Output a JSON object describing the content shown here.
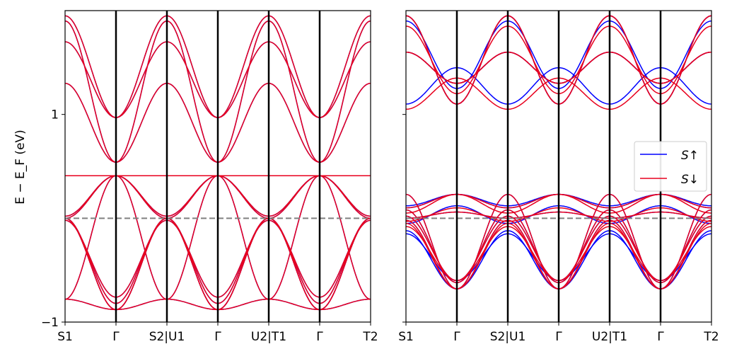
{
  "chart_data": [
    {
      "type": "line",
      "panel": "left",
      "ylabel": "E − E_F (eV)",
      "ylim": [
        -1,
        2
      ],
      "yticks": [
        1,
        -1
      ],
      "ytick_labels": [
        "1",
        "−1"
      ],
      "x_segments": [
        {
          "from": "S1",
          "to": "Γ"
        },
        {
          "from": "Γ",
          "to": "S2"
        },
        {
          "from": "U1",
          "to": "Γ"
        },
        {
          "from": "Γ",
          "to": "U2"
        },
        {
          "from": "T1",
          "to": "Γ"
        },
        {
          "from": "Γ",
          "to": "T2"
        }
      ],
      "xtick_labels": [
        "S1",
        "Γ",
        "S2|U1",
        "Γ",
        "U2|T1",
        "Γ",
        "T2"
      ],
      "fermi_level": 0,
      "series": [
        {
          "color": "#0000ff",
          "curves": [
            {
              "type": "v",
              "min": 0.54,
              "edge": 1.9
            },
            {
              "type": "v",
              "min": 0.54,
              "edge": 1.3
            },
            {
              "type": "cap",
              "max": 0.41,
              "edge": 0.41
            },
            {
              "type": "cap",
              "max": 0.41,
              "edge": -0.78
            },
            {
              "type": "valley",
              "min": -0.88,
              "edge": -0.78
            },
            {
              "type": "valley",
              "min": -0.88,
              "edge": 0.0
            },
            {
              "type": "dome",
              "max": 0.41,
              "edge": 0.0
            },
            {
              "type": "dome",
              "max": 0.41,
              "edge": 0.02
            },
            {
              "type": "valley",
              "min": -0.88,
              "edge": 0.0
            },
            {
              "type": "valley",
              "min": -0.82,
              "edge": 0.0
            },
            {
              "type": "valley",
              "min": -0.76,
              "edge": -0.02
            },
            {
              "type": "v",
              "min": 0.97,
              "edge": 1.7
            },
            {
              "type": "v",
              "min": 0.97,
              "edge": 1.95
            }
          ]
        },
        {
          "color": "#e8001e",
          "curves": [
            {
              "type": "v",
              "min": 0.54,
              "edge": 1.9
            },
            {
              "type": "v",
              "min": 0.54,
              "edge": 1.3
            },
            {
              "type": "cap",
              "max": 0.41,
              "edge": 0.41
            },
            {
              "type": "cap",
              "max": 0.41,
              "edge": -0.78
            },
            {
              "type": "valley",
              "min": -0.88,
              "edge": -0.78
            },
            {
              "type": "valley",
              "min": -0.88,
              "edge": 0.0
            },
            {
              "type": "dome",
              "max": 0.41,
              "edge": 0.0
            },
            {
              "type": "dome",
              "max": 0.41,
              "edge": 0.02
            },
            {
              "type": "valley",
              "min": -0.88,
              "edge": 0.0
            },
            {
              "type": "valley",
              "min": -0.82,
              "edge": 0.0
            },
            {
              "type": "valley",
              "min": -0.76,
              "edge": -0.02
            },
            {
              "type": "v",
              "min": 0.97,
              "edge": 1.7
            },
            {
              "type": "v",
              "min": 0.97,
              "edge": 1.95
            }
          ]
        }
      ]
    },
    {
      "type": "line",
      "panel": "right",
      "ylim": [
        -1,
        2
      ],
      "yticks": [
        1,
        -1
      ],
      "x_segments": [
        {
          "from": "S1",
          "to": "Γ"
        },
        {
          "from": "Γ",
          "to": "S2"
        },
        {
          "from": "U1",
          "to": "Γ"
        },
        {
          "from": "Γ",
          "to": "U2"
        },
        {
          "from": "T1",
          "to": "Γ"
        },
        {
          "from": "Γ",
          "to": "T2"
        }
      ],
      "xtick_labels": [
        "S1",
        "Γ",
        "S2|U1",
        "Γ",
        "U2|T1",
        "Γ",
        "T2"
      ],
      "fermi_level": 0,
      "legend": {
        "position": "center-right",
        "entries": [
          {
            "label": "S↑",
            "color": "#0000ff"
          },
          {
            "label": "S↓",
            "color": "#e8001e"
          }
        ]
      },
      "series": [
        {
          "name": "S↑",
          "color": "#0000ff",
          "curves": [
            {
              "type": "valley",
              "min": -0.68,
              "edge": 0.23
            },
            {
              "type": "valley",
              "min": -0.62,
              "edge": 0.08
            },
            {
              "type": "dome",
              "max": 0.23,
              "edge": 0.1
            },
            {
              "type": "v",
              "min": 1.1,
              "edge": 1.95
            },
            {
              "type": "v",
              "min": 1.3,
              "edge": 1.6
            },
            {
              "type": "valley",
              "min": -0.68,
              "edge": -0.12
            },
            {
              "type": "valley",
              "min": -0.6,
              "edge": -0.15
            },
            {
              "type": "dome",
              "max": 0.23,
              "edge": 0.12
            },
            {
              "type": "dome",
              "max": 0.12,
              "edge": -0.05
            },
            {
              "type": "dome",
              "max": 1.45,
              "edge": 1.1
            },
            {
              "type": "v",
              "min": 1.25,
              "edge": 1.9
            },
            {
              "type": "valley",
              "min": -0.68,
              "edge": -0.02
            },
            {
              "type": "valley",
              "min": -0.6,
              "edge": 0.02
            },
            {
              "type": "dome",
              "max": 0.06,
              "edge": 0.0
            },
            {
              "type": "v",
              "min": 1.1,
              "edge": 1.95
            },
            {
              "type": "v",
              "min": 1.3,
              "edge": 1.6
            }
          ]
        },
        {
          "name": "S↓",
          "color": "#e8001e",
          "curves": [
            {
              "type": "valley",
              "min": -0.68,
              "edge": 0.23
            },
            {
              "type": "valley",
              "min": -0.62,
              "edge": 0.08
            },
            {
              "type": "dome",
              "max": 0.23,
              "edge": 0.1
            },
            {
              "type": "v",
              "min": 1.1,
              "edge": 1.95
            },
            {
              "type": "v",
              "min": 1.3,
              "edge": 1.6
            },
            {
              "type": "valley",
              "min": -0.68,
              "edge": -0.05
            },
            {
              "type": "valley",
              "min": -0.6,
              "edge": -0.08
            },
            {
              "type": "dome",
              "max": 0.23,
              "edge": 0.05
            },
            {
              "type": "dome",
              "max": 0.1,
              "edge": -0.03
            },
            {
              "type": "dome",
              "max": 1.35,
              "edge": 1.05
            },
            {
              "type": "v",
              "min": 1.2,
              "edge": 1.85
            },
            {
              "type": "valley",
              "min": -0.68,
              "edge": -0.02
            },
            {
              "type": "valley",
              "min": -0.6,
              "edge": 0.02
            },
            {
              "type": "dome",
              "max": 0.06,
              "edge": 0.0
            },
            {
              "type": "v",
              "min": 1.1,
              "edge": 1.95
            },
            {
              "type": "v",
              "min": 1.3,
              "edge": 1.6
            }
          ]
        }
      ]
    }
  ]
}
